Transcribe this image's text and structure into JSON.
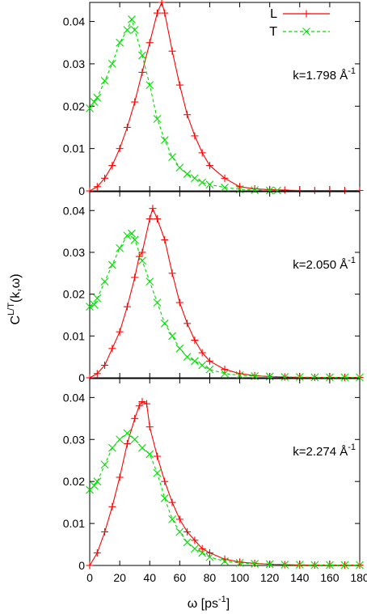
{
  "figure": {
    "ylabel": "C",
    "ylabel_superscript": "L/T",
    "ylabel_suffix": "(k,ω)",
    "xlabel": "ω [ps",
    "xlabel_superscript": "-1",
    "xlabel_suffix": "]"
  },
  "legend": {
    "entries": [
      {
        "label": "L",
        "color": "#ff0000",
        "marker": "plus",
        "dashed": false
      },
      {
        "label": "T",
        "color": "#00dd00",
        "marker": "cross",
        "dashed": true
      }
    ]
  },
  "chart_data": [
    {
      "type": "line",
      "annotation": {
        "prefix": "k=1.798 ",
        "unit": "Å",
        "superscript": "-1"
      },
      "x_ticks": [
        "0",
        "20",
        "40",
        "60",
        "80",
        "100",
        "120",
        "140",
        "160",
        "180"
      ],
      "y_ticks": [
        "0",
        "0.01",
        "0.02",
        "0.03",
        "0.04"
      ],
      "xlim": [
        0,
        180
      ],
      "ylim": [
        0,
        0.0445
      ],
      "series": [
        {
          "name": "L",
          "color": "#ff0000",
          "x": [
            0,
            5,
            10,
            15,
            20,
            25,
            30,
            35,
            40,
            45,
            48,
            50,
            55,
            60,
            65,
            70,
            75,
            80,
            90,
            100,
            110,
            120,
            130,
            140,
            150,
            160,
            170,
            180
          ],
          "y": [
            0,
            0.001,
            0.003,
            0.006,
            0.01,
            0.015,
            0.021,
            0.028,
            0.035,
            0.042,
            0.0445,
            0.042,
            0.033,
            0.025,
            0.018,
            0.013,
            0.009,
            0.006,
            0.003,
            0.001,
            0.0005,
            0.0003,
            0.0002,
            0.0001,
            0.0001,
            0.0001,
            0.0001,
            0.0001
          ]
        },
        {
          "name": "T",
          "color": "#00dd00",
          "x": [
            0,
            3,
            5,
            10,
            15,
            20,
            25,
            28,
            30,
            35,
            40,
            45,
            50,
            55,
            60,
            65,
            70,
            75,
            80,
            90,
            100,
            110,
            120,
            125
          ],
          "y": [
            0.0195,
            0.021,
            0.022,
            0.026,
            0.03,
            0.035,
            0.038,
            0.0405,
            0.038,
            0.032,
            0.025,
            0.017,
            0.012,
            0.008,
            0.0055,
            0.004,
            0.003,
            0.002,
            0.0015,
            0.0008,
            0.0004,
            0.0002,
            0.0001,
            0.0001
          ]
        }
      ]
    },
    {
      "type": "line",
      "annotation": {
        "prefix": "k=2.050 ",
        "unit": "Å",
        "superscript": "-1"
      },
      "x_ticks": [
        "0",
        "20",
        "40",
        "60",
        "80",
        "100",
        "120",
        "140",
        "160",
        "180"
      ],
      "y_ticks": [
        "0",
        "0.01",
        "0.02",
        "0.03",
        "0.04"
      ],
      "xlim": [
        0,
        180
      ],
      "ylim": [
        0,
        0.0445
      ],
      "series": [
        {
          "name": "L",
          "color": "#ff0000",
          "x": [
            0,
            5,
            10,
            15,
            20,
            25,
            30,
            33,
            35,
            40,
            42,
            45,
            50,
            55,
            60,
            65,
            70,
            75,
            80,
            90,
            100,
            110,
            120,
            130,
            140,
            150,
            160,
            170,
            180
          ],
          "y": [
            0,
            0.001,
            0.003,
            0.007,
            0.011,
            0.017,
            0.024,
            0.029,
            0.03,
            0.038,
            0.0405,
            0.038,
            0.033,
            0.025,
            0.018,
            0.013,
            0.009,
            0.006,
            0.004,
            0.002,
            0.001,
            0.0005,
            0.0003,
            0.0002,
            0.0001,
            0.0001,
            0.0001,
            0.0001,
            0.0001
          ]
        },
        {
          "name": "T",
          "color": "#00dd00",
          "x": [
            0,
            3,
            5,
            10,
            15,
            20,
            25,
            28,
            30,
            35,
            40,
            45,
            50,
            55,
            60,
            65,
            70,
            75,
            80,
            90,
            100,
            110,
            120,
            130,
            140,
            150,
            160,
            170,
            180
          ],
          "y": [
            0.017,
            0.0175,
            0.019,
            0.023,
            0.027,
            0.031,
            0.034,
            0.0345,
            0.033,
            0.028,
            0.023,
            0.018,
            0.013,
            0.01,
            0.007,
            0.005,
            0.004,
            0.003,
            0.002,
            0.001,
            0.0006,
            0.0004,
            0.0003,
            0.0002,
            0.0002,
            0.0001,
            0.0001,
            0.0001,
            0.0001
          ]
        }
      ]
    },
    {
      "type": "line",
      "annotation": {
        "prefix": "k=2.274 ",
        "unit": "Å",
        "superscript": "-1"
      },
      "x_ticks": [
        "0",
        "20",
        "40",
        "60",
        "80",
        "100",
        "120",
        "140",
        "160",
        "180"
      ],
      "y_ticks": [
        "0",
        "0.01",
        "0.02",
        "0.03",
        "0.04"
      ],
      "xlim": [
        0,
        180
      ],
      "ylim": [
        0,
        0.0445
      ],
      "series": [
        {
          "name": "L",
          "color": "#ff0000",
          "x": [
            0,
            5,
            10,
            15,
            20,
            25,
            30,
            33,
            35,
            38,
            40,
            45,
            50,
            55,
            60,
            65,
            70,
            75,
            80,
            90,
            100,
            110,
            120,
            130,
            140,
            150,
            160,
            170,
            180
          ],
          "y": [
            0,
            0.003,
            0.008,
            0.014,
            0.021,
            0.029,
            0.035,
            0.038,
            0.039,
            0.0385,
            0.033,
            0.026,
            0.02,
            0.015,
            0.011,
            0.008,
            0.006,
            0.004,
            0.003,
            0.0015,
            0.0008,
            0.0005,
            0.0003,
            0.0002,
            0.0001,
            0.0001,
            0.0001,
            0.0001,
            0.0001
          ]
        },
        {
          "name": "T",
          "color": "#00dd00",
          "x": [
            0,
            3,
            5,
            10,
            15,
            20,
            25,
            30,
            35,
            40,
            45,
            50,
            55,
            60,
            65,
            70,
            75,
            80,
            90,
            100,
            110,
            120,
            130,
            140,
            150,
            160,
            170,
            180
          ],
          "y": [
            0.018,
            0.019,
            0.02,
            0.024,
            0.028,
            0.03,
            0.0315,
            0.03,
            0.028,
            0.0265,
            0.022,
            0.016,
            0.011,
            0.008,
            0.0055,
            0.004,
            0.003,
            0.002,
            0.001,
            0.0006,
            0.0004,
            0.0003,
            0.0002,
            0.0002,
            0.0001,
            0.0001,
            0.0001,
            0.0001
          ]
        }
      ]
    }
  ]
}
